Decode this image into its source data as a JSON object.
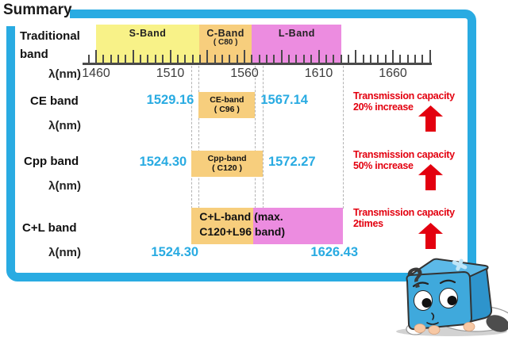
{
  "title": "Summary",
  "colors": {
    "blue": "#29ABE2",
    "yellow": "#F8F288",
    "orange": "#F7CE7D",
    "magenta": "#EC8CE0",
    "red": "#E3000F"
  },
  "axis": {
    "unit_label": "λ(nm)",
    "tick_labels": [
      1460,
      1510,
      1560,
      1610,
      1660
    ],
    "tick_min": 1455,
    "tick_max": 1685,
    "tick_step": 5,
    "major_every": 25
  },
  "traditional": {
    "label_line1": "Traditional",
    "label_line2": "band",
    "bands": [
      {
        "name": "S-Band",
        "sub": "",
        "start": 1460,
        "end": 1529.5,
        "color": "yellow"
      },
      {
        "name": "C-Band",
        "sub": "( C80 )",
        "start": 1529.5,
        "end": 1565,
        "color": "orange"
      },
      {
        "name": "L-Band",
        "sub": "",
        "start": 1565,
        "end": 1625.5,
        "color": "magenta"
      }
    ]
  },
  "dashed_nm": [
    1524.3,
    1529.16,
    1567.14,
    1572.27,
    1626.43
  ],
  "rows": [
    {
      "id": "ce",
      "label": "CE band",
      "unit": "λ(nm)",
      "start": "1529.16",
      "end": "1567.14",
      "box_line1": "CE-band",
      "box_line2": "( C96 )",
      "note_line1": "Transmission capacity",
      "note_line2": "20% increase"
    },
    {
      "id": "cpp",
      "label": "Cpp band",
      "unit": "λ(nm)",
      "start": "1524.30",
      "end": "1572.27",
      "box_line1": "Cpp-band",
      "box_line2": "( C120 )",
      "note_line1": "Transmission capacity",
      "note_line2": "50% increase"
    },
    {
      "id": "cl",
      "label": "C+L band",
      "unit": "λ(nm)",
      "start": "1524.30",
      "end": "1626.43",
      "split_nm": 1566,
      "box_line1": "C+L-band (max.",
      "box_line2": "C120+L96 band)",
      "note_line1": "Transmission capacity",
      "note_line2": "2times"
    }
  ],
  "mascot": {
    "question_mark": "?"
  }
}
